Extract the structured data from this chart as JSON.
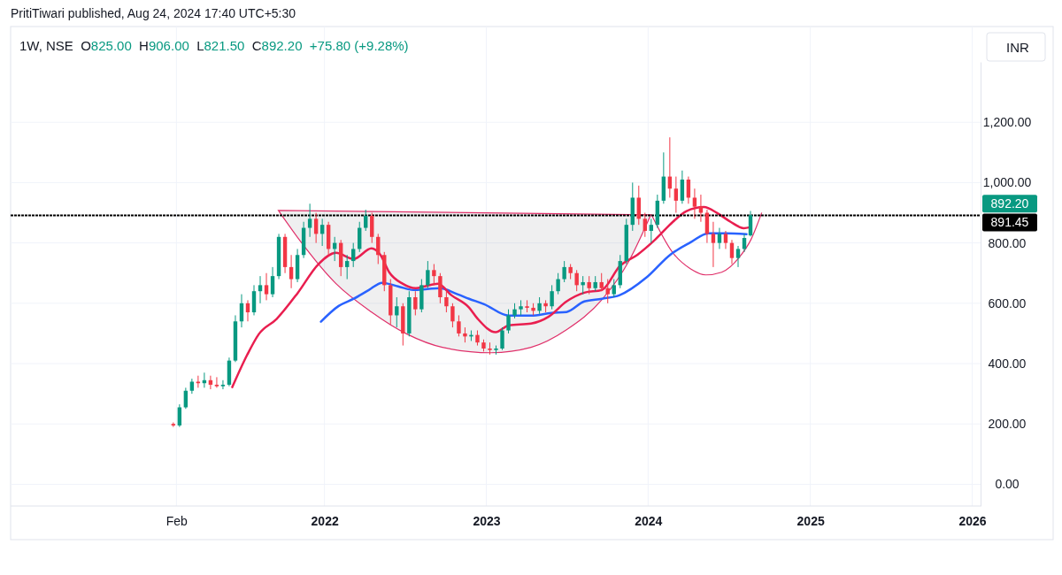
{
  "chart_data": {
    "type": "candlestick",
    "title": "1W, NSE",
    "subtitle": "O825.00  H906.00  L821.50  C892.20  +75.80 (+9.28%)",
    "ylabel": "INR",
    "annotations": [
      "PritiTiwari published, Aug 24, 2024 17:40 UTC+5:30",
      "892.20"
    ],
    "x": [
      "2021-01-25",
      "2021-02-08",
      "2021-02-22",
      "2021-03-08",
      "2021-03-22",
      "2021-04-05",
      "2021-04-19",
      "2021-05-03",
      "2021-05-17",
      "2021-05-31",
      "2021-06-14",
      "2021-06-28",
      "2021-07-12",
      "2021-07-26",
      "2021-08-09",
      "2021-08-23",
      "2021-09-06",
      "2021-09-20",
      "2021-10-04",
      "2021-10-18",
      "2021-11-01",
      "2021-11-15",
      "2021-11-29",
      "2021-12-13",
      "2021-12-27",
      "2022-01-10",
      "2022-01-24",
      "2022-02-07",
      "2022-02-21",
      "2022-03-07",
      "2022-03-21",
      "2022-04-04",
      "2022-04-18",
      "2022-05-02",
      "2022-05-16",
      "2022-05-30",
      "2022-06-13",
      "2022-06-27",
      "2022-07-11",
      "2022-07-25",
      "2022-08-08",
      "2022-08-22",
      "2022-09-05",
      "2022-09-19",
      "2022-10-03",
      "2022-10-17",
      "2022-10-31",
      "2022-11-14",
      "2022-11-28",
      "2022-12-12",
      "2022-12-26",
      "2023-01-09",
      "2023-01-23",
      "2023-02-06",
      "2023-02-20",
      "2023-03-06",
      "2023-03-20",
      "2023-04-03",
      "2023-04-17",
      "2023-05-01",
      "2023-05-15",
      "2023-05-29",
      "2023-06-12",
      "2023-06-26",
      "2023-07-10",
      "2023-07-24",
      "2023-08-07",
      "2023-08-21",
      "2023-09-04",
      "2023-09-18",
      "2023-10-02",
      "2023-10-16",
      "2023-10-30",
      "2023-11-13",
      "2023-11-27",
      "2023-12-11",
      "2023-12-25",
      "2024-01-08",
      "2024-01-22",
      "2024-02-05",
      "2024-02-19",
      "2024-03-04",
      "2024-03-18",
      "2024-04-01",
      "2024-04-15",
      "2024-04-29",
      "2024-05-13",
      "2024-05-27",
      "2024-06-10",
      "2024-06-24",
      "2024-07-08",
      "2024-07-22",
      "2024-08-05",
      "2024-08-19"
    ],
    "ohlc": [
      [
        200,
        205,
        190,
        195
      ],
      [
        195,
        265,
        190,
        255
      ],
      [
        255,
        320,
        250,
        310
      ],
      [
        310,
        350,
        300,
        340
      ],
      [
        340,
        360,
        320,
        335
      ],
      [
        335,
        370,
        320,
        345
      ],
      [
        345,
        360,
        315,
        330
      ],
      [
        330,
        355,
        320,
        325
      ],
      [
        325,
        345,
        315,
        330
      ],
      [
        330,
        420,
        325,
        410
      ],
      [
        410,
        560,
        405,
        540
      ],
      [
        540,
        630,
        520,
        600
      ],
      [
        600,
        610,
        540,
        570
      ],
      [
        570,
        660,
        560,
        640
      ],
      [
        640,
        690,
        600,
        660
      ],
      [
        660,
        700,
        610,
        630
      ],
      [
        630,
        720,
        620,
        690
      ],
      [
        690,
        830,
        680,
        820
      ],
      [
        820,
        830,
        700,
        720
      ],
      [
        720,
        760,
        650,
        680
      ],
      [
        680,
        780,
        670,
        760
      ],
      [
        760,
        870,
        750,
        850
      ],
      [
        850,
        930,
        820,
        880
      ],
      [
        880,
        900,
        800,
        830
      ],
      [
        830,
        880,
        790,
        860
      ],
      [
        860,
        870,
        760,
        780
      ],
      [
        780,
        820,
        740,
        800
      ],
      [
        800,
        810,
        690,
        720
      ],
      [
        720,
        760,
        680,
        740
      ],
      [
        740,
        800,
        720,
        780
      ],
      [
        780,
        870,
        770,
        850
      ],
      [
        850,
        910,
        840,
        890
      ],
      [
        890,
        900,
        800,
        820
      ],
      [
        820,
        830,
        730,
        760
      ],
      [
        760,
        770,
        640,
        660
      ],
      [
        660,
        680,
        530,
        560
      ],
      [
        560,
        620,
        520,
        590
      ],
      [
        590,
        600,
        460,
        500
      ],
      [
        500,
        640,
        490,
        620
      ],
      [
        620,
        640,
        560,
        580
      ],
      [
        580,
        680,
        570,
        660
      ],
      [
        660,
        740,
        650,
        710
      ],
      [
        710,
        730,
        660,
        690
      ],
      [
        690,
        700,
        600,
        620
      ],
      [
        620,
        640,
        570,
        590
      ],
      [
        590,
        600,
        520,
        540
      ],
      [
        540,
        560,
        490,
        500
      ],
      [
        500,
        520,
        470,
        490
      ],
      [
        490,
        510,
        475,
        495
      ],
      [
        495,
        510,
        460,
        470
      ],
      [
        470,
        480,
        440,
        450
      ],
      [
        450,
        470,
        430,
        445
      ],
      [
        445,
        460,
        430,
        450
      ],
      [
        450,
        520,
        445,
        510
      ],
      [
        510,
        580,
        500,
        560
      ],
      [
        560,
        600,
        550,
        580
      ],
      [
        580,
        610,
        560,
        590
      ],
      [
        590,
        610,
        570,
        585
      ],
      [
        585,
        600,
        560,
        575
      ],
      [
        575,
        620,
        565,
        600
      ],
      [
        600,
        610,
        570,
        590
      ],
      [
        590,
        660,
        580,
        640
      ],
      [
        640,
        700,
        630,
        680
      ],
      [
        680,
        740,
        670,
        720
      ],
      [
        720,
        730,
        680,
        700
      ],
      [
        700,
        710,
        640,
        660
      ],
      [
        660,
        690,
        630,
        670
      ],
      [
        670,
        690,
        630,
        650
      ],
      [
        650,
        690,
        640,
        670
      ],
      [
        670,
        700,
        640,
        650
      ],
      [
        650,
        680,
        600,
        630
      ],
      [
        630,
        680,
        620,
        660
      ],
      [
        660,
        760,
        650,
        740
      ],
      [
        740,
        880,
        730,
        860
      ],
      [
        860,
        1000,
        840,
        950
      ],
      [
        950,
        990,
        860,
        880
      ],
      [
        880,
        900,
        820,
        840
      ],
      [
        840,
        880,
        800,
        860
      ],
      [
        860,
        960,
        850,
        940
      ],
      [
        940,
        1100,
        930,
        1020
      ],
      [
        1020,
        1150,
        950,
        980
      ],
      [
        980,
        1020,
        900,
        940
      ],
      [
        940,
        1040,
        930,
        1010
      ],
      [
        1010,
        1020,
        930,
        950
      ],
      [
        950,
        980,
        880,
        920
      ],
      [
        920,
        960,
        870,
        900
      ],
      [
        900,
        910,
        800,
        830
      ],
      [
        830,
        870,
        720,
        800
      ],
      [
        800,
        850,
        780,
        830
      ],
      [
        830,
        840,
        780,
        800
      ],
      [
        800,
        810,
        730,
        750
      ],
      [
        750,
        790,
        720,
        780
      ],
      [
        780,
        830,
        770,
        816.4
      ],
      [
        825,
        906,
        821.5,
        892.2
      ]
    ],
    "series": [
      {
        "type": "area",
        "color": "#e0306a",
        "x": [
          "2021-09-19",
          "2021-11-08",
          "2022-01-27",
          "2022-04-17",
          "2022-07-06",
          "2022-09-24",
          "2023-01-12",
          "2023-04-12",
          "2023-07-01",
          "2023-09-19",
          "2023-11-18",
          "2024-01-07"
        ],
        "values": [
          908,
          805,
          665,
          571,
          498,
          454,
          436,
          454,
          512,
          612,
          738,
          893
        ]
      },
      {
        "type": "line",
        "color": "#e0306a",
        "x": [
          "2024-01-09",
          "2024-02-26",
          "2024-04-06",
          "2024-05-10",
          "2024-06-15",
          "2024-07-25",
          "2024-08-20",
          "2024-09-13"
        ],
        "values": [
          893,
          767,
          714,
          694,
          703,
          753,
          811,
          899
        ]
      },
      {
        "type": "line",
        "color": "#2962ff",
        "x": [
          "2021-12-24",
          "2022-02-02",
          "2022-03-08",
          "2022-04-11",
          "2022-05-11",
          "2022-06-16",
          "2022-07-20",
          "2022-08-21",
          "2022-09-18",
          "2022-10-28",
          "2022-11-23",
          "2022-12-27",
          "2023-02-21",
          "2023-04-12",
          "2023-05-28",
          "2023-07-01",
          "2023-08-10",
          "2023-09-19",
          "2023-10-29",
          "2023-12-28",
          "2024-02-20",
          "2024-04-06",
          "2024-05-16",
          "2024-06-25",
          "2024-08-10"
        ],
        "values": [
          539,
          591,
          615,
          644,
          668,
          656,
          644,
          647,
          650,
          630,
          615,
          597,
          559,
          559,
          568,
          571,
          606,
          615,
          627,
          685,
          761,
          802,
          832,
          832,
          829
        ]
      },
      {
        "type": "line",
        "color": "#e91e4f",
        "x": [
          "2021-06-07",
          "2021-07-11",
          "2021-08-06",
          "2021-09-15",
          "2021-11-02",
          "2021-12-18",
          "2022-01-27",
          "2022-03-08",
          "2022-04-17",
          "2022-05-07",
          "2022-05-27",
          "2022-06-26",
          "2022-07-26",
          "2022-08-15",
          "2022-09-14",
          "2022-10-14",
          "2022-11-23",
          "2022-12-13",
          "2023-01-22",
          "2023-02-21",
          "2023-04-12",
          "2023-05-22",
          "2023-07-01",
          "2023-08-10",
          "2023-09-19",
          "2023-10-29",
          "2023-12-08",
          "2024-01-17",
          "2024-02-26",
          "2024-03-27",
          "2024-05-06",
          "2024-06-05",
          "2024-07-05",
          "2024-08-04",
          "2024-08-18"
        ],
        "values": [
          322,
          430,
          498,
          548,
          635,
          729,
          767,
          747,
          782,
          761,
          703,
          665,
          650,
          656,
          665,
          627,
          586,
          548,
          504,
          527,
          533,
          556,
          606,
          635,
          644,
          723,
          761,
          811,
          870,
          905,
          919,
          899,
          870,
          849,
          852
        ]
      }
    ],
    "xlim": [
      "2020-01-24",
      "2026-01-20"
    ],
    "xticks": [
      {
        "value": "2021-02-01",
        "label": "Feb"
      },
      {
        "value": "2022-01-01",
        "label": "2022"
      },
      {
        "value": "2023-01-01",
        "label": "2023"
      },
      {
        "value": "2024-01-01",
        "label": "2024"
      },
      {
        "value": "2025-01-01",
        "label": "2025"
      },
      {
        "value": "2026-01-01",
        "label": "2026"
      }
    ],
    "ylim": [
      -72,
      1400
    ],
    "yticks": [
      {
        "value": 0,
        "label": "0.00"
      },
      {
        "value": 200,
        "label": "200.00"
      },
      {
        "value": 400,
        "label": "400.00"
      },
      {
        "value": 600,
        "label": "600.00"
      },
      {
        "value": 800,
        "label": "800.00"
      },
      {
        "value": 1000,
        "label": "1,000.00"
      },
      {
        "value": 1200,
        "label": "1,200.00"
      }
    ],
    "ref_lines": [
      {
        "axis": "y",
        "value": 891.45,
        "label": "891.45",
        "color": "#000000",
        "line_style": "dashed"
      }
    ],
    "grid": true
  }
}
